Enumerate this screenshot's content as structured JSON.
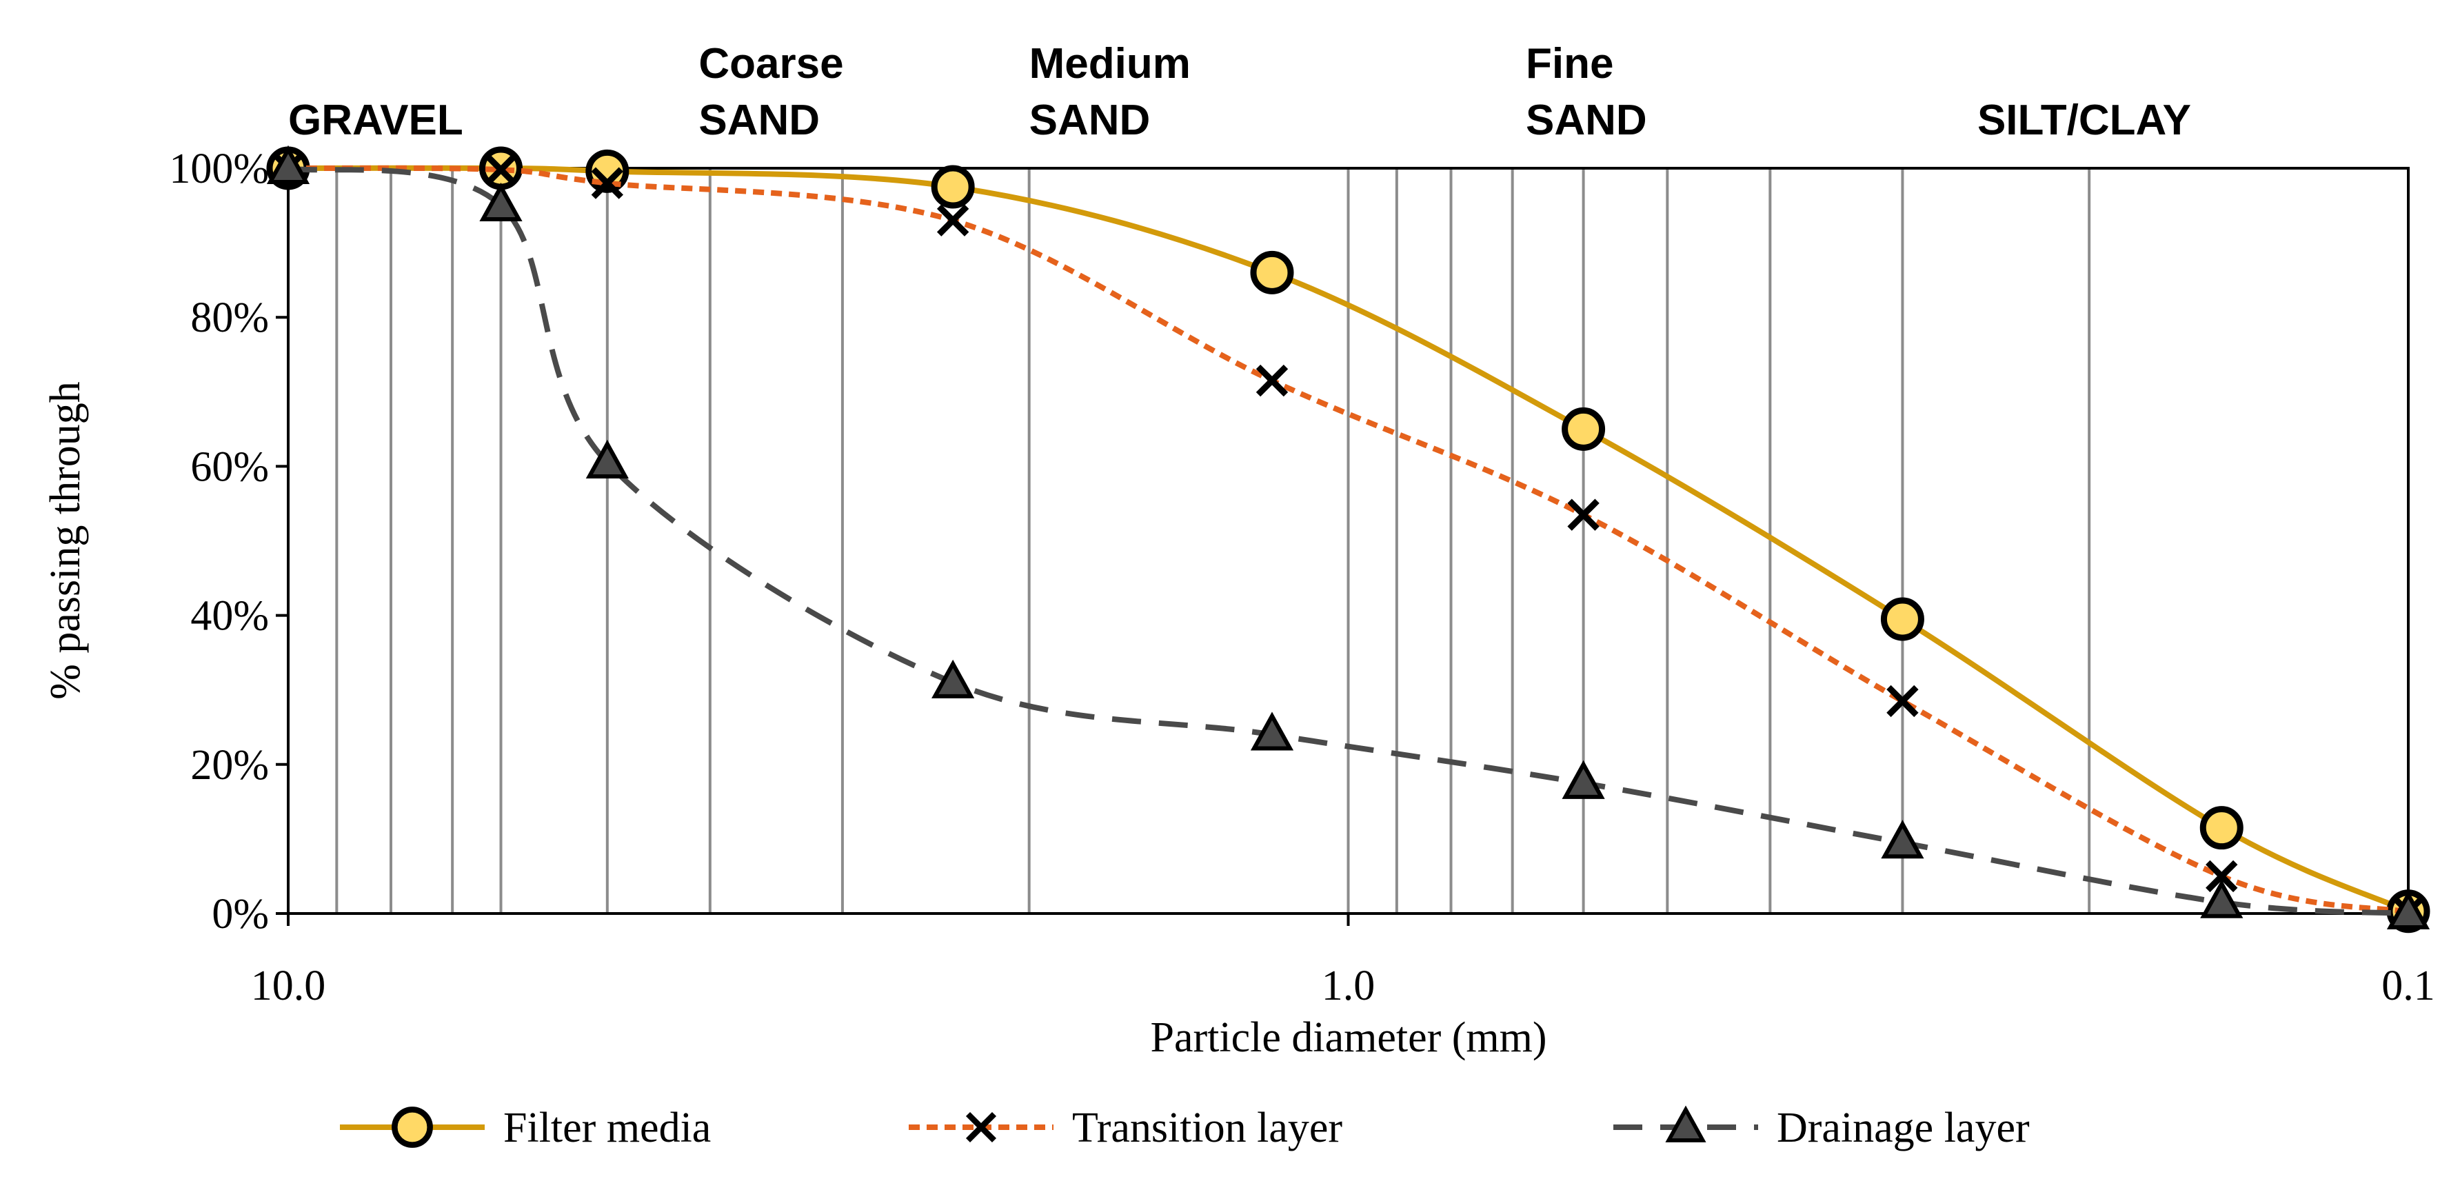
{
  "chart_data": {
    "type": "line",
    "xscale": "log",
    "xaxis_reversed": true,
    "xlim": [
      10.0,
      0.1
    ],
    "ylim": [
      0,
      100
    ],
    "xlabel": "Particle diameter (mm)",
    "ylabel": "% passing through",
    "x_ticks": [
      {
        "value": 10.0,
        "label": "10.0"
      },
      {
        "value": 1.0,
        "label": "1.0"
      },
      {
        "value": 0.1,
        "label": "0.1"
      }
    ],
    "y_ticks": [
      {
        "value": 0,
        "label": "0%"
      },
      {
        "value": 20,
        "label": "20%"
      },
      {
        "value": 40,
        "label": "40%"
      },
      {
        "value": 60,
        "label": "60%"
      },
      {
        "value": 80,
        "label": "80%"
      },
      {
        "value": 100,
        "label": "100%"
      }
    ],
    "gridlines_x": [
      9.0,
      8.0,
      7.0,
      6.3,
      5.0,
      4.0,
      3.0,
      2.0,
      1.0,
      0.9,
      0.8,
      0.7,
      0.6,
      0.5,
      0.4,
      0.3,
      0.2
    ],
    "zones": [
      {
        "lines": [
          "GRAVEL"
        ],
        "x": 10.0
      },
      {
        "lines": [
          "Coarse",
          "SAND"
        ],
        "x": 4.1
      },
      {
        "lines": [
          "Medium",
          "SAND"
        ],
        "x": 2.0
      },
      {
        "lines": [
          "Fine",
          "SAND"
        ],
        "x": 0.68
      },
      {
        "lines": [
          "SILT/CLAY"
        ],
        "x": 0.255
      }
    ],
    "series": [
      {
        "name": "Filter media",
        "color": "#D39A0A",
        "marker_fill": "#FFD966",
        "marker": "circle",
        "line_style": "solid",
        "x": [
          10.0,
          6.3,
          5.0,
          2.36,
          1.18,
          0.6,
          0.3,
          0.15,
          0.1
        ],
        "y": [
          100,
          100,
          99.6,
          97.5,
          86,
          65,
          39.5,
          11.5,
          0.3
        ]
      },
      {
        "name": "Transition layer",
        "color": "#E5621C",
        "marker": "x",
        "line_style": "dotted",
        "x": [
          10.0,
          6.3,
          5.0,
          2.36,
          1.18,
          0.6,
          0.3,
          0.15,
          0.1
        ],
        "y": [
          100,
          99.8,
          98,
          93,
          71.5,
          53.5,
          28.5,
          5,
          0.2
        ]
      },
      {
        "name": "Drainage layer",
        "color": "#4A4A4A",
        "marker_fill": "#4A4A4A",
        "marker": "triangle",
        "line_style": "dashed",
        "x": [
          10.0,
          6.3,
          5.0,
          2.36,
          1.18,
          0.6,
          0.3,
          0.15,
          0.1
        ],
        "y": [
          100,
          95,
          60.5,
          31,
          24,
          17.5,
          9.5,
          1.5,
          0
        ]
      }
    ]
  }
}
